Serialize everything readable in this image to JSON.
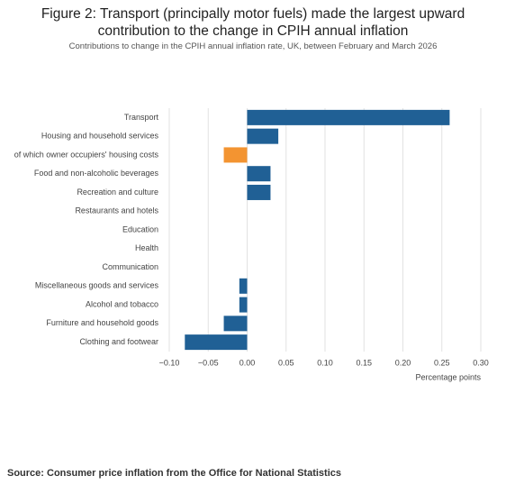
{
  "chart_data": {
    "type": "hbar",
    "title": "Figure 2: Transport (principally motor fuels) made the largest upward contribution to the change in CPIH annual inflation",
    "subtitle": "Contributions to change in the CPIH annual inflation rate, UK, between February and March 2026",
    "source": "Source: Consumer price inflation from the Office for National Statistics",
    "x_label": "Percentage points",
    "categories": [
      "Transport",
      "Housing and household services",
      "of which owner occupiers' housing costs",
      "Food and non-alcoholic beverages",
      "Recreation and culture",
      "Restaurants and hotels",
      "Education",
      "Health",
      "Communication",
      "Miscellaneous goods and services",
      "Alcohol and tobacco",
      "Furniture and household goods",
      "Clothing and footwear"
    ],
    "values": [
      0.26,
      0.04,
      -0.03,
      0.03,
      0.03,
      0,
      0,
      0,
      0,
      -0.01,
      -0.01,
      -0.03,
      -0.08
    ],
    "colors": [
      "#206095",
      "#206095",
      "#f39431",
      "#206095",
      "#206095",
      "#206095",
      "#206095",
      "#206095",
      "#206095",
      "#206095",
      "#206095",
      "#206095",
      "#206095"
    ],
    "xlim": [
      -0.1,
      0.3
    ],
    "xticks": [
      {
        "value": -0.1,
        "label": "−0.10"
      },
      {
        "value": -0.05,
        "label": "−0.05"
      },
      {
        "value": 0,
        "label": "0.00"
      },
      {
        "value": 0.05,
        "label": "0.05"
      },
      {
        "value": 0.1,
        "label": "0.10"
      },
      {
        "value": 0.15,
        "label": "0.15"
      },
      {
        "value": 0.2,
        "label": "0.20"
      },
      {
        "value": 0.25,
        "label": "0.25"
      },
      {
        "value": 0.3,
        "label": "0.30"
      }
    ],
    "grid": true
  }
}
